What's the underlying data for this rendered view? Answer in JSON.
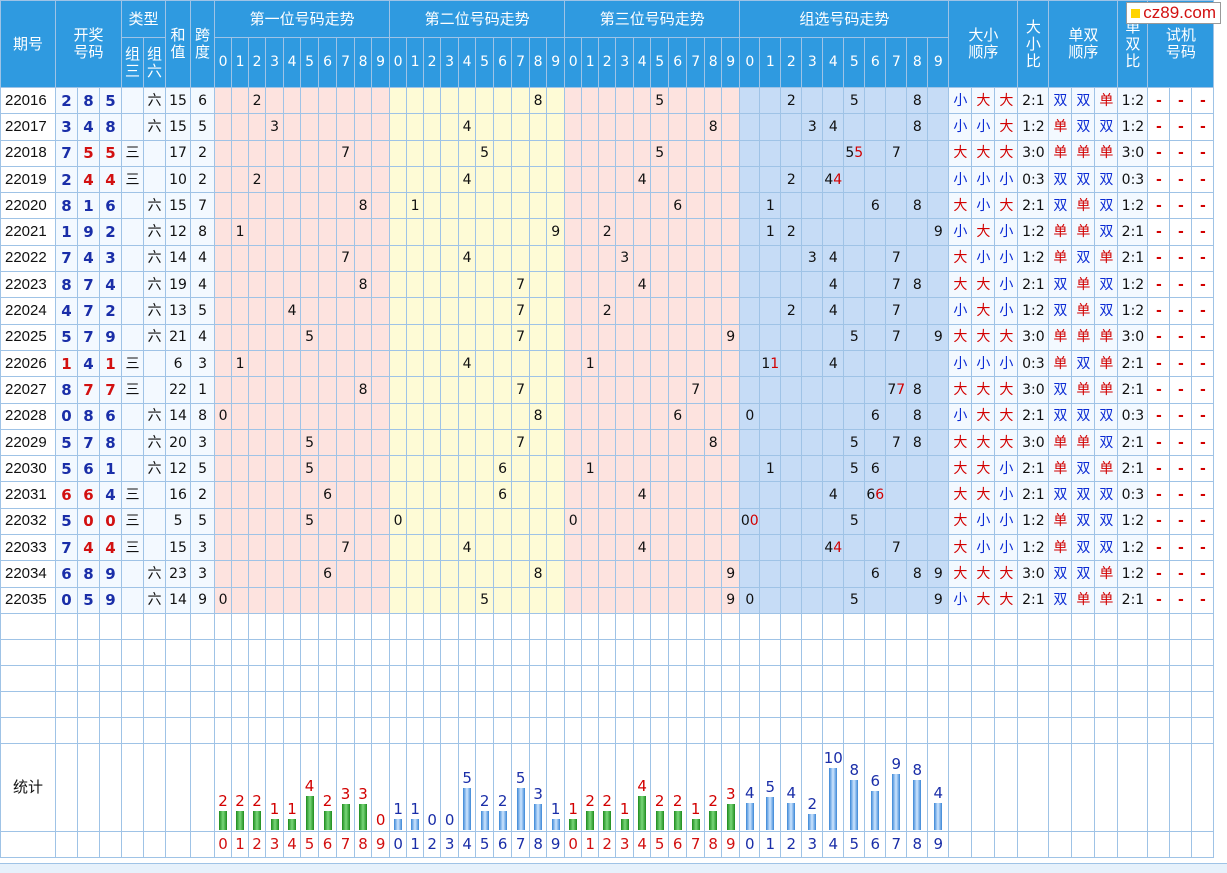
{
  "logo": {
    "text": "cz89.com"
  },
  "header": {
    "period": "期号",
    "draw": [
      "开奖",
      "号码"
    ],
    "type": "类型",
    "zu3": [
      "组",
      "三"
    ],
    "zu6": [
      "组",
      "六"
    ],
    "sum": [
      "和",
      "值"
    ],
    "span": [
      "跨",
      "度"
    ],
    "pos1": "第一位号码走势",
    "pos2": "第二位号码走势",
    "pos3": "第三位号码走势",
    "group": "组选号码走势",
    "bs_order": [
      "大小",
      "顺序"
    ],
    "bs_ratio": [
      "大",
      "小",
      "比"
    ],
    "oe_order": [
      "单双",
      "顺序"
    ],
    "oe_ratio": [
      "单",
      "双",
      "比"
    ],
    "test": [
      "试机",
      "号码"
    ],
    "digits": [
      "0",
      "1",
      "2",
      "3",
      "4",
      "5",
      "6",
      "7",
      "8",
      "9"
    ]
  },
  "rows": [
    {
      "period": "22016",
      "n": [
        "2",
        "8",
        "5"
      ],
      "t": "六",
      "sum": "15",
      "span": "6",
      "bs": [
        "小",
        "大",
        "大"
      ],
      "bsr": "2:1",
      "oe": [
        "双",
        "双",
        "单"
      ],
      "oer": "1:2"
    },
    {
      "period": "22017",
      "n": [
        "3",
        "4",
        "8"
      ],
      "t": "六",
      "sum": "15",
      "span": "5",
      "bs": [
        "小",
        "小",
        "大"
      ],
      "bsr": "1:2",
      "oe": [
        "单",
        "双",
        "双"
      ],
      "oer": "1:2"
    },
    {
      "period": "22018",
      "n": [
        "7",
        "5",
        "5"
      ],
      "t": "三",
      "sum": "17",
      "span": "2",
      "bs": [
        "大",
        "大",
        "大"
      ],
      "bsr": "3:0",
      "oe": [
        "单",
        "单",
        "单"
      ],
      "oer": "3:0"
    },
    {
      "period": "22019",
      "n": [
        "2",
        "4",
        "4"
      ],
      "t": "三",
      "sum": "10",
      "span": "2",
      "bs": [
        "小",
        "小",
        "小"
      ],
      "bsr": "0:3",
      "oe": [
        "双",
        "双",
        "双"
      ],
      "oer": "0:3"
    },
    {
      "period": "22020",
      "n": [
        "8",
        "1",
        "6"
      ],
      "t": "六",
      "sum": "15",
      "span": "7",
      "bs": [
        "大",
        "小",
        "大"
      ],
      "bsr": "2:1",
      "oe": [
        "双",
        "单",
        "双"
      ],
      "oer": "1:2"
    },
    {
      "period": "22021",
      "n": [
        "1",
        "9",
        "2"
      ],
      "t": "六",
      "sum": "12",
      "span": "8",
      "bs": [
        "小",
        "大",
        "小"
      ],
      "bsr": "1:2",
      "oe": [
        "单",
        "单",
        "双"
      ],
      "oer": "2:1"
    },
    {
      "period": "22022",
      "n": [
        "7",
        "4",
        "3"
      ],
      "t": "六",
      "sum": "14",
      "span": "4",
      "bs": [
        "大",
        "小",
        "小"
      ],
      "bsr": "1:2",
      "oe": [
        "单",
        "双",
        "单"
      ],
      "oer": "2:1"
    },
    {
      "period": "22023",
      "n": [
        "8",
        "7",
        "4"
      ],
      "t": "六",
      "sum": "19",
      "span": "4",
      "bs": [
        "大",
        "大",
        "小"
      ],
      "bsr": "2:1",
      "oe": [
        "双",
        "单",
        "双"
      ],
      "oer": "1:2"
    },
    {
      "period": "22024",
      "n": [
        "4",
        "7",
        "2"
      ],
      "t": "六",
      "sum": "13",
      "span": "5",
      "bs": [
        "小",
        "大",
        "小"
      ],
      "bsr": "1:2",
      "oe": [
        "双",
        "单",
        "双"
      ],
      "oer": "1:2"
    },
    {
      "period": "22025",
      "n": [
        "5",
        "7",
        "9"
      ],
      "t": "六",
      "sum": "21",
      "span": "4",
      "bs": [
        "大",
        "大",
        "大"
      ],
      "bsr": "3:0",
      "oe": [
        "单",
        "单",
        "单"
      ],
      "oer": "3:0"
    },
    {
      "period": "22026",
      "n": [
        "1",
        "4",
        "1"
      ],
      "t": "三",
      "sum": "6",
      "span": "3",
      "bs": [
        "小",
        "小",
        "小"
      ],
      "bsr": "0:3",
      "oe": [
        "单",
        "双",
        "单"
      ],
      "oer": "2:1"
    },
    {
      "period": "22027",
      "n": [
        "8",
        "7",
        "7"
      ],
      "t": "三",
      "sum": "22",
      "span": "1",
      "bs": [
        "大",
        "大",
        "大"
      ],
      "bsr": "3:0",
      "oe": [
        "双",
        "单",
        "单"
      ],
      "oer": "2:1"
    },
    {
      "period": "22028",
      "n": [
        "0",
        "8",
        "6"
      ],
      "t": "六",
      "sum": "14",
      "span": "8",
      "bs": [
        "小",
        "大",
        "大"
      ],
      "bsr": "2:1",
      "oe": [
        "双",
        "双",
        "双"
      ],
      "oer": "0:3"
    },
    {
      "period": "22029",
      "n": [
        "5",
        "7",
        "8"
      ],
      "t": "六",
      "sum": "20",
      "span": "3",
      "bs": [
        "大",
        "大",
        "大"
      ],
      "bsr": "3:0",
      "oe": [
        "单",
        "单",
        "双"
      ],
      "oer": "2:1"
    },
    {
      "period": "22030",
      "n": [
        "5",
        "6",
        "1"
      ],
      "t": "六",
      "sum": "12",
      "span": "5",
      "bs": [
        "大",
        "大",
        "小"
      ],
      "bsr": "2:1",
      "oe": [
        "单",
        "双",
        "单"
      ],
      "oer": "2:1"
    },
    {
      "period": "22031",
      "n": [
        "6",
        "6",
        "4"
      ],
      "t": "三",
      "sum": "16",
      "span": "2",
      "bs": [
        "大",
        "大",
        "小"
      ],
      "bsr": "2:1",
      "oe": [
        "双",
        "双",
        "双"
      ],
      "oer": "0:3"
    },
    {
      "period": "22032",
      "n": [
        "5",
        "0",
        "0"
      ],
      "t": "三",
      "sum": "5",
      "span": "5",
      "bs": [
        "大",
        "小",
        "小"
      ],
      "bsr": "1:2",
      "oe": [
        "单",
        "双",
        "双"
      ],
      "oer": "1:2"
    },
    {
      "period": "22033",
      "n": [
        "7",
        "4",
        "4"
      ],
      "t": "三",
      "sum": "15",
      "span": "3",
      "bs": [
        "大",
        "小",
        "小"
      ],
      "bsr": "1:2",
      "oe": [
        "单",
        "双",
        "双"
      ],
      "oer": "1:2"
    },
    {
      "period": "22034",
      "n": [
        "6",
        "8",
        "9"
      ],
      "t": "六",
      "sum": "23",
      "span": "3",
      "bs": [
        "大",
        "大",
        "大"
      ],
      "bsr": "3:0",
      "oe": [
        "双",
        "双",
        "单"
      ],
      "oer": "1:2"
    },
    {
      "period": "22035",
      "n": [
        "0",
        "5",
        "9"
      ],
      "t": "六",
      "sum": "14",
      "span": "9",
      "bs": [
        "小",
        "大",
        "大"
      ],
      "bsr": "2:1",
      "oe": [
        "双",
        "单",
        "单"
      ],
      "oer": "2:1"
    }
  ],
  "test_placeholder": "-",
  "stats": {
    "label": "统计",
    "pos1": [
      2,
      2,
      2,
      1,
      1,
      4,
      2,
      3,
      3,
      0
    ],
    "pos2": [
      1,
      1,
      0,
      0,
      5,
      2,
      2,
      5,
      3,
      1
    ],
    "pos3": [
      1,
      2,
      2,
      1,
      4,
      2,
      2,
      1,
      2,
      3
    ],
    "group": [
      4,
      5,
      4,
      2,
      10,
      8,
      6,
      9,
      8,
      4
    ]
  },
  "colors": {
    "header": "#2f9ae0",
    "big": "#d20000",
    "small": "#0b2bd4",
    "grid": "#9fc3e6"
  }
}
